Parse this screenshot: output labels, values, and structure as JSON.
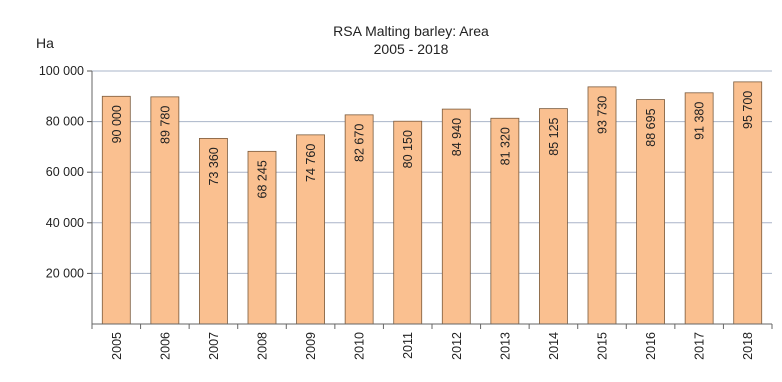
{
  "chart_data": {
    "type": "bar",
    "title": "RSA  Malting barley: Area",
    "subtitle": "2005 - 2018",
    "ylabel": "Ha",
    "xlabel": "",
    "categories": [
      "2005",
      "2006",
      "2007",
      "2008",
      "2009",
      "2010",
      "2011",
      "2012",
      "2013",
      "2014",
      "2015",
      "2016",
      "2017",
      "2018"
    ],
    "values": [
      90000,
      89780,
      73360,
      68245,
      74760,
      82670,
      80150,
      84940,
      81320,
      85125,
      93730,
      88695,
      91380,
      95700
    ],
    "value_labels": [
      "90 000",
      "89 780",
      "73 360",
      "68 245",
      "74 760",
      "82 670",
      "80 150",
      "84 940",
      "81 320",
      "85 125",
      "93 730",
      "88 695",
      "91 380",
      "95 700"
    ],
    "ylim": [
      0,
      100000
    ],
    "yticks": [
      20000,
      40000,
      60000,
      80000,
      100000
    ],
    "ytick_labels": [
      "20 000",
      "40 000",
      "60 000",
      "80 000",
      "100 000"
    ],
    "grid": true,
    "bar_color": "#fac090",
    "bar_edge_color": "#7a5a3c",
    "grid_color": "#aab4c8"
  }
}
